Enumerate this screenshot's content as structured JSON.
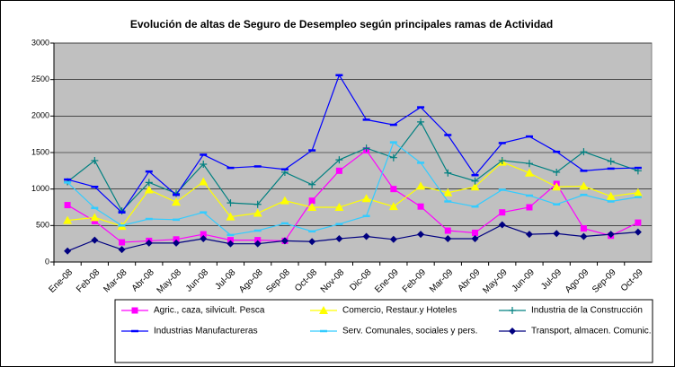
{
  "chart_data": {
    "type": "line",
    "title": "Evolución de altas de Seguro de Desempleo según principales ramas de Actividad",
    "categories": [
      "Ene-08",
      "Feb-08",
      "Mar-08",
      "Abr-08",
      "May-08",
      "Jun-08",
      "Jul-08",
      "Ago-08",
      "Sep-08",
      "Oct-08",
      "Nov-08",
      "Dic-08",
      "Ene-09",
      "Feb-09",
      "Mar-09",
      "Abr-09",
      "May-09",
      "Jun-09",
      "Jul-09",
      "Ago-09",
      "Sep-09",
      "Oct-09"
    ],
    "series": [
      {
        "name": "Agric., caza, silvicult. Pesca",
        "color": "#ff00ff",
        "marker": "square",
        "values": [
          780,
          560,
          270,
          290,
          310,
          380,
          300,
          300,
          290,
          840,
          1250,
          1530,
          1000,
          760,
          430,
          400,
          680,
          750,
          1070,
          460,
          360,
          540
        ]
      },
      {
        "name": "Comercio, Restaur.y Hoteles",
        "color": "#ffff00",
        "marker": "triangle",
        "values": [
          570,
          610,
          490,
          990,
          820,
          1100,
          620,
          670,
          840,
          750,
          750,
          870,
          760,
          1040,
          950,
          1030,
          1370,
          1220,
          1030,
          1040,
          900,
          950
        ]
      },
      {
        "name": "Industria de la Construcción",
        "color": "#008080",
        "marker": "plus",
        "values": [
          1100,
          1390,
          700,
          1090,
          940,
          1340,
          810,
          790,
          1230,
          1060,
          1400,
          1560,
          1430,
          1920,
          1220,
          1110,
          1390,
          1350,
          1230,
          1510,
          1380,
          1250
        ]
      },
      {
        "name": "Industrias Manufactureras",
        "color": "#0000ff",
        "marker": "dash",
        "values": [
          1130,
          1030,
          680,
          1240,
          920,
          1470,
          1290,
          1310,
          1270,
          1530,
          2560,
          1950,
          1880,
          2120,
          1740,
          1190,
          1630,
          1720,
          1510,
          1250,
          1280,
          1290
        ]
      },
      {
        "name": "Serv. Comunales, sociales y pers.",
        "color": "#33ccff",
        "marker": "dash",
        "values": [
          1090,
          740,
          500,
          590,
          580,
          680,
          370,
          430,
          530,
          420,
          520,
          630,
          1640,
          1360,
          830,
          760,
          990,
          910,
          790,
          920,
          830,
          890
        ]
      },
      {
        "name": "Transport, almacen. Comunic.",
        "color": "#000080",
        "marker": "diamond",
        "values": [
          150,
          300,
          170,
          260,
          260,
          320,
          250,
          250,
          290,
          280,
          320,
          350,
          310,
          380,
          320,
          320,
          510,
          380,
          390,
          350,
          380,
          410
        ]
      }
    ],
    "ylim": [
      0,
      3000
    ],
    "yticks": [
      0,
      500,
      1000,
      1500,
      2000,
      2500,
      3000
    ],
    "grid": true
  }
}
